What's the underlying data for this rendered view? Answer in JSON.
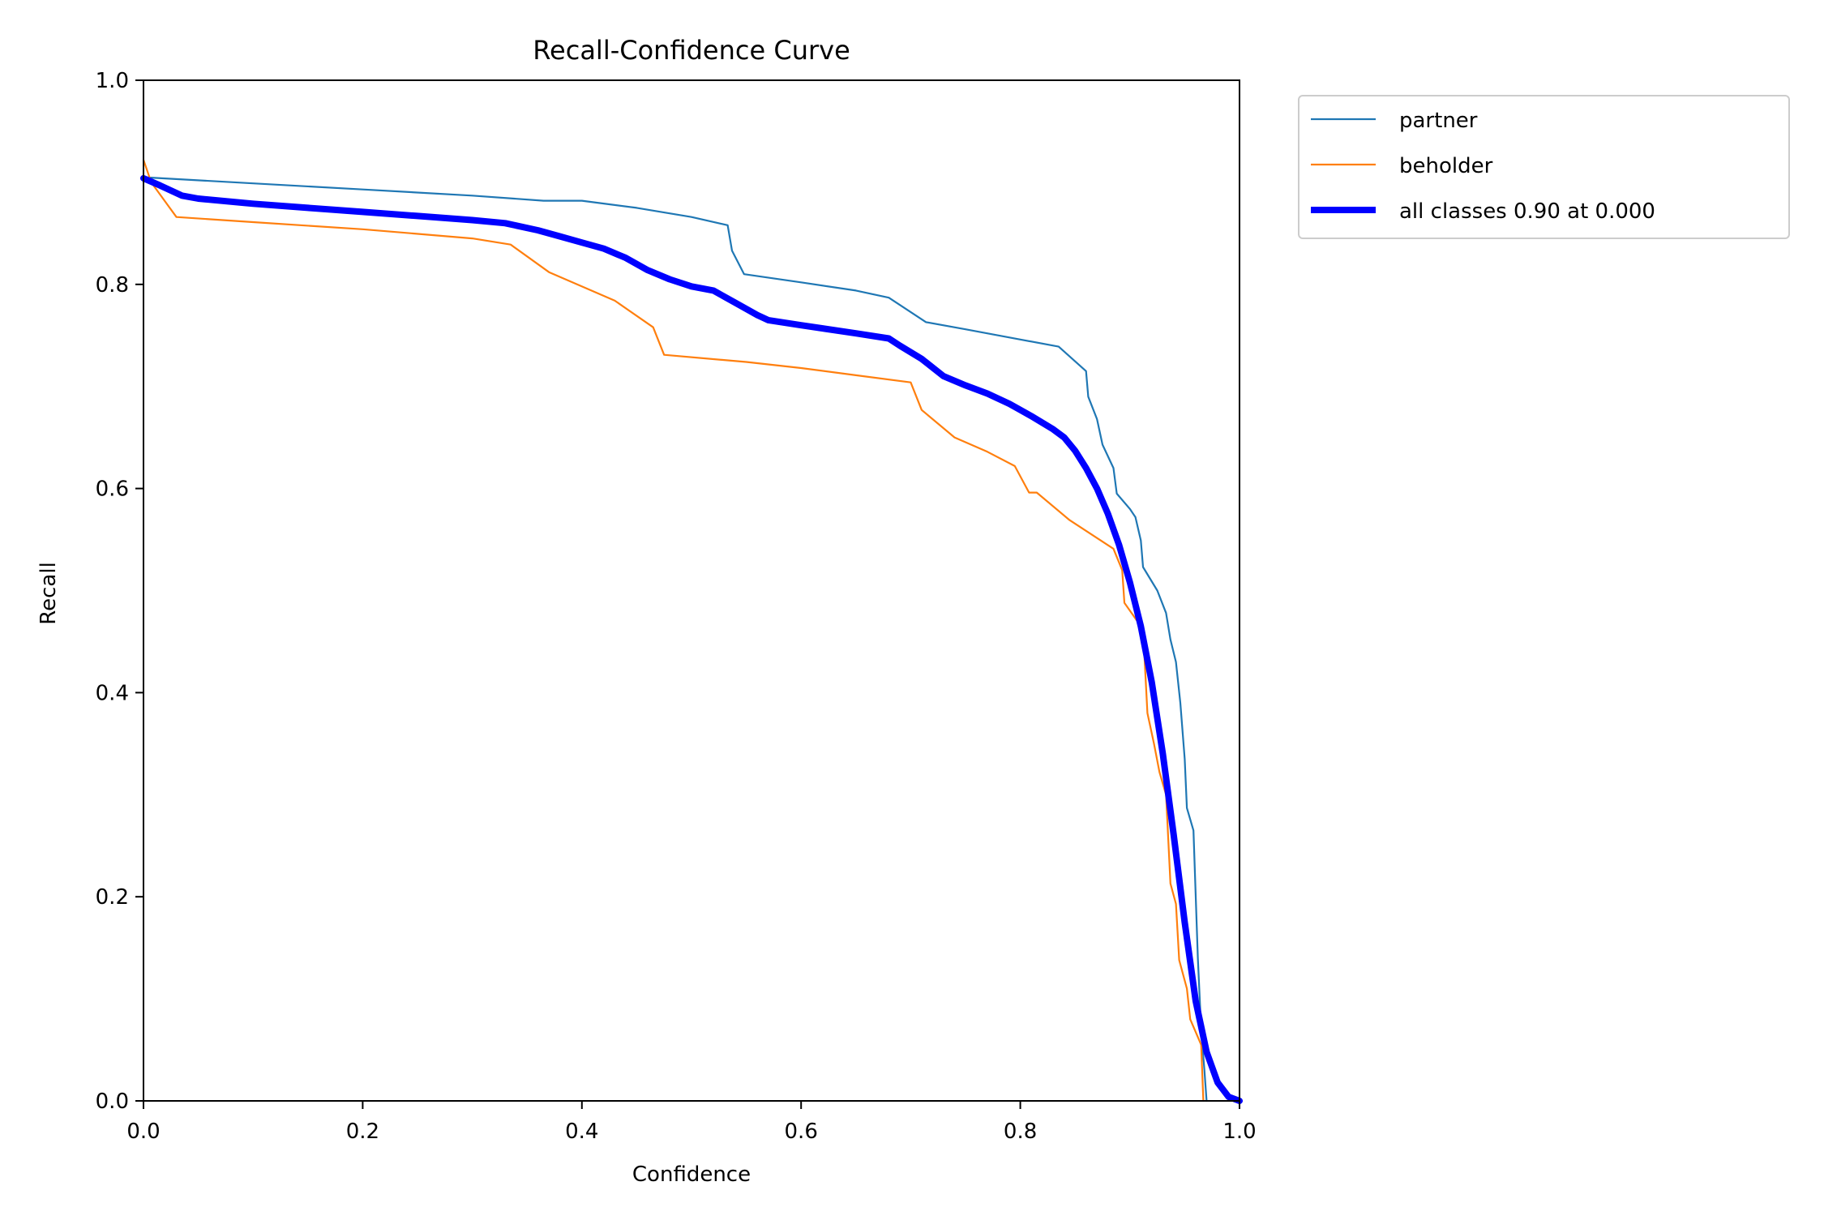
{
  "chart_data": {
    "type": "line",
    "title": "Recall-Confidence Curve",
    "xlabel": "Confidence",
    "ylabel": "Recall",
    "xlim": [
      0,
      1
    ],
    "ylim": [
      0,
      1
    ],
    "xticks": [
      "0.0",
      "0.2",
      "0.4",
      "0.6",
      "0.8",
      "1.0"
    ],
    "yticks": [
      "0.0",
      "0.2",
      "0.4",
      "0.6",
      "0.8",
      "1.0"
    ],
    "grid": false,
    "legend_position": "outside upper right",
    "series": [
      {
        "name": "partner",
        "color": "#1f77b4",
        "line": "thin",
        "points": [
          [
            0.0,
            0.905
          ],
          [
            0.1,
            0.899
          ],
          [
            0.2,
            0.893
          ],
          [
            0.3,
            0.887
          ],
          [
            0.365,
            0.882
          ],
          [
            0.4,
            0.882
          ],
          [
            0.45,
            0.875
          ],
          [
            0.5,
            0.866
          ],
          [
            0.533,
            0.858
          ],
          [
            0.537,
            0.833
          ],
          [
            0.548,
            0.81
          ],
          [
            0.6,
            0.802
          ],
          [
            0.65,
            0.794
          ],
          [
            0.68,
            0.787
          ],
          [
            0.714,
            0.763
          ],
          [
            0.75,
            0.756
          ],
          [
            0.8,
            0.746
          ],
          [
            0.835,
            0.739
          ],
          [
            0.86,
            0.715
          ],
          [
            0.862,
            0.69
          ],
          [
            0.87,
            0.668
          ],
          [
            0.875,
            0.643
          ],
          [
            0.885,
            0.62
          ],
          [
            0.888,
            0.595
          ],
          [
            0.9,
            0.58
          ],
          [
            0.905,
            0.572
          ],
          [
            0.91,
            0.549
          ],
          [
            0.912,
            0.523
          ],
          [
            0.925,
            0.5
          ],
          [
            0.933,
            0.478
          ],
          [
            0.937,
            0.452
          ],
          [
            0.942,
            0.43
          ],
          [
            0.946,
            0.39
          ],
          [
            0.95,
            0.335
          ],
          [
            0.952,
            0.287
          ],
          [
            0.958,
            0.265
          ],
          [
            0.962,
            0.14
          ],
          [
            0.965,
            0.07
          ],
          [
            0.968,
            0.03
          ],
          [
            0.97,
            0.0
          ]
        ]
      },
      {
        "name": "beholder",
        "color": "#ff7f0e",
        "line": "thin",
        "points": [
          [
            0.0,
            0.922
          ],
          [
            0.007,
            0.9
          ],
          [
            0.03,
            0.866
          ],
          [
            0.1,
            0.861
          ],
          [
            0.2,
            0.854
          ],
          [
            0.3,
            0.845
          ],
          [
            0.335,
            0.839
          ],
          [
            0.37,
            0.812
          ],
          [
            0.43,
            0.784
          ],
          [
            0.465,
            0.758
          ],
          [
            0.475,
            0.731
          ],
          [
            0.55,
            0.724
          ],
          [
            0.6,
            0.718
          ],
          [
            0.65,
            0.711
          ],
          [
            0.7,
            0.704
          ],
          [
            0.71,
            0.677
          ],
          [
            0.74,
            0.65
          ],
          [
            0.77,
            0.636
          ],
          [
            0.795,
            0.622
          ],
          [
            0.808,
            0.596
          ],
          [
            0.815,
            0.596
          ],
          [
            0.845,
            0.569
          ],
          [
            0.885,
            0.541
          ],
          [
            0.893,
            0.52
          ],
          [
            0.895,
            0.488
          ],
          [
            0.912,
            0.462
          ],
          [
            0.916,
            0.38
          ],
          [
            0.922,
            0.35
          ],
          [
            0.927,
            0.322
          ],
          [
            0.933,
            0.3
          ],
          [
            0.937,
            0.213
          ],
          [
            0.942,
            0.193
          ],
          [
            0.945,
            0.138
          ],
          [
            0.952,
            0.11
          ],
          [
            0.955,
            0.08
          ],
          [
            0.965,
            0.055
          ],
          [
            0.967,
            0.0
          ]
        ]
      },
      {
        "name": "all classes 0.90 at 0.000",
        "color": "#0000ff",
        "line": "thick",
        "points": [
          [
            0.0,
            0.904
          ],
          [
            0.015,
            0.897
          ],
          [
            0.035,
            0.887
          ],
          [
            0.05,
            0.884
          ],
          [
            0.1,
            0.879
          ],
          [
            0.15,
            0.875
          ],
          [
            0.2,
            0.871
          ],
          [
            0.25,
            0.867
          ],
          [
            0.3,
            0.863
          ],
          [
            0.33,
            0.86
          ],
          [
            0.36,
            0.853
          ],
          [
            0.38,
            0.847
          ],
          [
            0.4,
            0.841
          ],
          [
            0.42,
            0.835
          ],
          [
            0.44,
            0.826
          ],
          [
            0.46,
            0.814
          ],
          [
            0.48,
            0.805
          ],
          [
            0.5,
            0.798
          ],
          [
            0.52,
            0.794
          ],
          [
            0.54,
            0.782
          ],
          [
            0.56,
            0.77
          ],
          [
            0.57,
            0.765
          ],
          [
            0.6,
            0.76
          ],
          [
            0.65,
            0.752
          ],
          [
            0.68,
            0.747
          ],
          [
            0.69,
            0.74
          ],
          [
            0.71,
            0.727
          ],
          [
            0.73,
            0.71
          ],
          [
            0.75,
            0.701
          ],
          [
            0.77,
            0.693
          ],
          [
            0.79,
            0.683
          ],
          [
            0.81,
            0.671
          ],
          [
            0.83,
            0.658
          ],
          [
            0.84,
            0.65
          ],
          [
            0.85,
            0.637
          ],
          [
            0.86,
            0.62
          ],
          [
            0.87,
            0.6
          ],
          [
            0.88,
            0.575
          ],
          [
            0.89,
            0.545
          ],
          [
            0.9,
            0.508
          ],
          [
            0.91,
            0.465
          ],
          [
            0.92,
            0.41
          ],
          [
            0.93,
            0.34
          ],
          [
            0.94,
            0.26
          ],
          [
            0.95,
            0.175
          ],
          [
            0.96,
            0.098
          ],
          [
            0.97,
            0.048
          ],
          [
            0.98,
            0.018
          ],
          [
            0.99,
            0.004
          ],
          [
            1.0,
            0.0
          ]
        ]
      }
    ]
  }
}
